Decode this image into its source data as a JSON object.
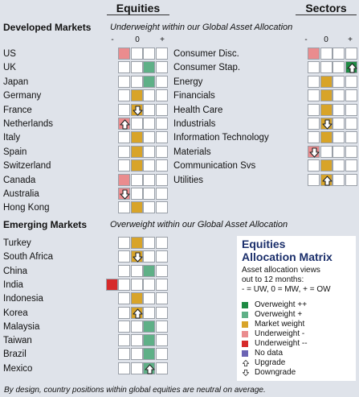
{
  "headers": {
    "equities": "Equities",
    "sectors": "Sectors"
  },
  "ticks": [
    "-",
    "0",
    "+"
  ],
  "developed": {
    "title": "Developed Markets",
    "note": "Underweight within our Global Asset Allocation",
    "rows": [
      {
        "label": "US",
        "color": "UWm",
        "col": 0,
        "arrow": null
      },
      {
        "label": "UK",
        "color": "OWp",
        "col": 2,
        "arrow": null
      },
      {
        "label": "Japan",
        "color": "OWp",
        "col": 2,
        "arrow": null
      },
      {
        "label": "Germany",
        "color": "MW",
        "col": 1,
        "arrow": null
      },
      {
        "label": "France",
        "color": "MW",
        "col": 1,
        "arrow": "down"
      },
      {
        "label": "Netherlands",
        "color": "UWm",
        "col": 0,
        "arrow": "up"
      },
      {
        "label": "Italy",
        "color": "MW",
        "col": 1,
        "arrow": null
      },
      {
        "label": "Spain",
        "color": "MW",
        "col": 1,
        "arrow": null
      },
      {
        "label": "Switzerland",
        "color": "MW",
        "col": 1,
        "arrow": null
      },
      {
        "label": "Canada",
        "color": "UWm",
        "col": 0,
        "arrow": null
      },
      {
        "label": "Australia",
        "color": "UWm",
        "col": 0,
        "arrow": "down"
      },
      {
        "label": "Hong Kong",
        "color": "MW",
        "col": 1,
        "arrow": null
      }
    ]
  },
  "emerging": {
    "title": "Emerging Markets",
    "note": "Overweight within our Global Asset Allocation",
    "rows": [
      {
        "label": "Turkey",
        "color": "MW",
        "col": 1,
        "arrow": null
      },
      {
        "label": "South Africa",
        "color": "MW",
        "col": 1,
        "arrow": "down"
      },
      {
        "label": "China",
        "color": "OWp",
        "col": 2,
        "arrow": null
      },
      {
        "label": "India",
        "color": "UWmm",
        "col": -1,
        "arrow": null
      },
      {
        "label": "Indonesia",
        "color": "MW",
        "col": 1,
        "arrow": null
      },
      {
        "label": "Korea",
        "color": "MW",
        "col": 1,
        "arrow": "up"
      },
      {
        "label": "Malaysia",
        "color": "OWp",
        "col": 2,
        "arrow": null
      },
      {
        "label": "Taiwan",
        "color": "OWp",
        "col": 2,
        "arrow": null
      },
      {
        "label": "Brazil",
        "color": "OWp",
        "col": 2,
        "arrow": null
      },
      {
        "label": "Mexico",
        "color": "OWp",
        "col": 2,
        "arrow": "up"
      }
    ]
  },
  "sectors": {
    "rows": [
      {
        "label": "Consumer Disc.",
        "color": "UWm",
        "col": 0,
        "arrow": null
      },
      {
        "label": "Consumer Stap.",
        "color": "OWpp",
        "col": 3,
        "arrow": "up"
      },
      {
        "label": "Energy",
        "color": "MW",
        "col": 1,
        "arrow": null
      },
      {
        "label": "Financials",
        "color": "MW",
        "col": 1,
        "arrow": null
      },
      {
        "label": "Health Care",
        "color": "MW",
        "col": 1,
        "arrow": null
      },
      {
        "label": "Industrials",
        "color": "MW",
        "col": 1,
        "arrow": "down"
      },
      {
        "label": "Information Technology",
        "color": "MW",
        "col": 1,
        "arrow": null
      },
      {
        "label": "Materials",
        "color": "UWm",
        "col": 0,
        "arrow": "down"
      },
      {
        "label": "Communication Svs",
        "color": "MW",
        "col": 1,
        "arrow": null
      },
      {
        "label": "Utilities",
        "color": "MW",
        "col": 1,
        "arrow": "up"
      }
    ]
  },
  "legend": {
    "title_line1": "Equities",
    "title_line2": "Allocation Matrix",
    "desc_line1": "Asset allocation views",
    "desc_line2": "out to 12 months:",
    "desc_line3": "- = UW, 0 = MW, + = OW",
    "items": [
      {
        "label": "Overweight ++",
        "swatch": "OWpp",
        "color": "#1e8a43"
      },
      {
        "label": "Overweight +",
        "swatch": "OWp",
        "color": "#5fb087"
      },
      {
        "label": "Market weight",
        "swatch": "MW",
        "color": "#d8a429"
      },
      {
        "label": "Underweight -",
        "swatch": "UWm",
        "color": "#ea8c8e"
      },
      {
        "label": "Underweight --",
        "swatch": "UWmm",
        "color": "#d62a2a"
      },
      {
        "label": "No data",
        "swatch": "ND",
        "color": "#6b63b3"
      },
      {
        "label": "Upgrade",
        "swatch": "up",
        "color": ""
      },
      {
        "label": "Downgrade",
        "swatch": "down",
        "color": ""
      }
    ]
  },
  "footnote": "By design, country positions within global equities are neutral on average."
}
